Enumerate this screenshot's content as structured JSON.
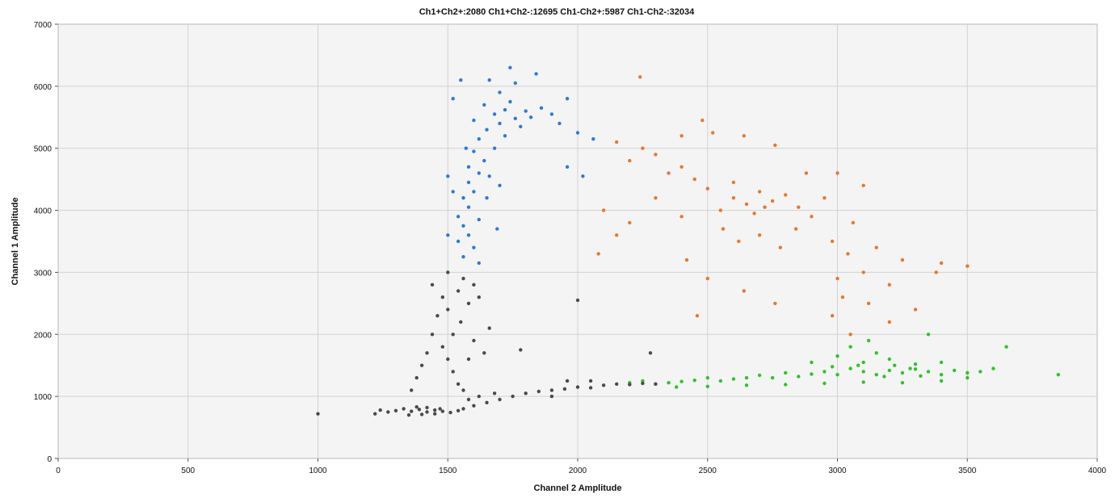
{
  "chart_data": {
    "type": "scatter",
    "title": "Ch1+Ch2+:2080  Ch1+Ch2-:12695  Ch1-Ch2+:5987  Ch1-Ch2-:32034",
    "xlabel": "Channel 2 Amplitude",
    "ylabel": "Channel 1 Amplitude",
    "xlim": [
      0,
      4000
    ],
    "ylim": [
      0,
      7000
    ],
    "x_ticks": [
      0,
      500,
      1000,
      1500,
      2000,
      2500,
      3000,
      3500,
      4000
    ],
    "y_ticks": [
      0,
      1000,
      2000,
      3000,
      4000,
      5000,
      6000,
      7000
    ],
    "x_tick_labels": [
      "0",
      "500",
      "1000",
      "1500",
      "2000",
      "2500",
      "3000",
      "3500",
      "4000"
    ],
    "y_tick_labels": [
      "0",
      "1000",
      "2000",
      "3000",
      "4000",
      "5000",
      "6000",
      "7000"
    ],
    "grid": true,
    "series": [
      {
        "color": "#2f79d6",
        "points": [
          [
            1640,
            5700
          ],
          [
            1680,
            5550
          ],
          [
            1720,
            5620
          ],
          [
            1760,
            5480
          ],
          [
            1800,
            5600
          ],
          [
            1700,
            5400
          ],
          [
            1650,
            5300
          ],
          [
            1740,
            5750
          ],
          [
            1780,
            5350
          ],
          [
            1820,
            5500
          ],
          [
            1860,
            5650
          ],
          [
            1600,
            5450
          ],
          [
            1700,
            5900
          ],
          [
            1760,
            6050
          ],
          [
            1660,
            6100
          ],
          [
            1900,
            5550
          ],
          [
            1930,
            5400
          ],
          [
            1620,
            5150
          ],
          [
            1680,
            5000
          ],
          [
            1720,
            5200
          ],
          [
            1600,
            4950
          ],
          [
            1640,
            4800
          ],
          [
            1580,
            4700
          ],
          [
            1620,
            4600
          ],
          [
            1580,
            4450
          ],
          [
            1600,
            4300
          ],
          [
            1560,
            4200
          ],
          [
            1580,
            4050
          ],
          [
            1540,
            3900
          ],
          [
            1560,
            3750
          ],
          [
            1580,
            3600
          ],
          [
            1540,
            3500
          ],
          [
            1600,
            3400
          ],
          [
            1560,
            3250
          ],
          [
            1620,
            3150
          ],
          [
            1550,
            6100
          ],
          [
            1960,
            5800
          ],
          [
            2000,
            5250
          ],
          [
            2060,
            5150
          ],
          [
            1840,
            6200
          ],
          [
            1740,
            6300
          ],
          [
            1520,
            5800
          ],
          [
            1570,
            5000
          ],
          [
            1660,
            4550
          ],
          [
            1700,
            4400
          ],
          [
            1650,
            4200
          ],
          [
            1520,
            4300
          ],
          [
            1500,
            4550
          ],
          [
            1620,
            3850
          ],
          [
            1690,
            3700
          ],
          [
            1500,
            3600
          ],
          [
            1960,
            4700
          ],
          [
            2020,
            4550
          ]
        ]
      },
      {
        "color": "#e8772e",
        "points": [
          [
            2600,
            4200
          ],
          [
            2650,
            4100
          ],
          [
            2700,
            4300
          ],
          [
            2750,
            4150
          ],
          [
            2800,
            4250
          ],
          [
            2550,
            4000
          ],
          [
            2500,
            4350
          ],
          [
            2450,
            4500
          ],
          [
            2600,
            4450
          ],
          [
            2680,
            3950
          ],
          [
            2720,
            4050
          ],
          [
            2850,
            4050
          ],
          [
            2900,
            3900
          ],
          [
            2950,
            4200
          ],
          [
            2400,
            4700
          ],
          [
            2350,
            4600
          ],
          [
            2300,
            4900
          ],
          [
            2250,
            5000
          ],
          [
            2200,
            4800
          ],
          [
            2150,
            5100
          ],
          [
            2480,
            5450
          ],
          [
            2520,
            5250
          ],
          [
            2560,
            3700
          ],
          [
            2620,
            3500
          ],
          [
            2700,
            3600
          ],
          [
            2780,
            3400
          ],
          [
            2400,
            3900
          ],
          [
            2300,
            4200
          ],
          [
            2200,
            3800
          ],
          [
            2150,
            3600
          ],
          [
            2100,
            4000
          ],
          [
            2080,
            3300
          ],
          [
            2980,
            3500
          ],
          [
            3040,
            3300
          ],
          [
            3100,
            3000
          ],
          [
            3150,
            3400
          ],
          [
            3200,
            2800
          ],
          [
            3250,
            3200
          ],
          [
            3000,
            2900
          ],
          [
            3020,
            2600
          ],
          [
            2980,
            2300
          ],
          [
            3050,
            2000
          ],
          [
            3120,
            2500
          ],
          [
            3200,
            2200
          ],
          [
            3300,
            2400
          ],
          [
            3380,
            3000
          ],
          [
            3400,
            3150
          ],
          [
            3500,
            3100
          ],
          [
            3060,
            3800
          ],
          [
            2840,
            3700
          ],
          [
            2880,
            4600
          ],
          [
            3000,
            4600
          ],
          [
            3100,
            4400
          ],
          [
            2420,
            3200
          ],
          [
            2500,
            2900
          ],
          [
            2640,
            2700
          ],
          [
            2460,
            2300
          ],
          [
            2760,
            2500
          ],
          [
            2240,
            6150
          ],
          [
            2760,
            5050
          ],
          [
            2640,
            5200
          ],
          [
            2400,
            5200
          ]
        ]
      },
      {
        "color": "#33c12a",
        "points": [
          [
            3050,
            1450
          ],
          [
            3100,
            1400
          ],
          [
            3150,
            1350
          ],
          [
            3200,
            1420
          ],
          [
            3250,
            1380
          ],
          [
            3300,
            1440
          ],
          [
            3350,
            1400
          ],
          [
            3400,
            1350
          ],
          [
            3450,
            1420
          ],
          [
            3500,
            1380
          ],
          [
            3550,
            1400
          ],
          [
            3000,
            1350
          ],
          [
            2950,
            1400
          ],
          [
            2900,
            1360
          ],
          [
            2850,
            1320
          ],
          [
            2800,
            1380
          ],
          [
            2750,
            1300
          ],
          [
            2700,
            1340
          ],
          [
            2650,
            1300
          ],
          [
            2600,
            1280
          ],
          [
            2550,
            1250
          ],
          [
            2500,
            1300
          ],
          [
            2450,
            1260
          ],
          [
            2400,
            1240
          ],
          [
            2350,
            1220
          ],
          [
            2300,
            1200
          ],
          [
            2250,
            1250
          ],
          [
            2200,
            1220
          ],
          [
            3100,
            1550
          ],
          [
            3200,
            1600
          ],
          [
            3300,
            1520
          ],
          [
            3150,
            1700
          ],
          [
            3050,
            1800
          ],
          [
            3120,
            1900
          ],
          [
            3000,
            1650
          ],
          [
            2900,
            1550
          ],
          [
            3400,
            1550
          ],
          [
            3600,
            1450
          ],
          [
            3650,
            1800
          ],
          [
            3850,
            1350
          ],
          [
            3350,
            2000
          ],
          [
            3400,
            1250
          ],
          [
            3250,
            1220
          ],
          [
            3100,
            1230
          ],
          [
            2950,
            1210
          ],
          [
            2800,
            1190
          ],
          [
            2650,
            1180
          ],
          [
            2500,
            1160
          ],
          [
            2380,
            1150
          ],
          [
            3500,
            1300
          ],
          [
            3220,
            1500
          ],
          [
            3280,
            1450
          ],
          [
            3080,
            1500
          ],
          [
            2980,
            1480
          ],
          [
            3180,
            1320
          ],
          [
            3320,
            1330
          ]
        ]
      },
      {
        "color": "#4a4a4a",
        "points": [
          [
            1300,
            770
          ],
          [
            1330,
            800
          ],
          [
            1360,
            760
          ],
          [
            1390,
            790
          ],
          [
            1420,
            750
          ],
          [
            1450,
            780
          ],
          [
            1480,
            760
          ],
          [
            1510,
            740
          ],
          [
            1540,
            770
          ],
          [
            1270,
            750
          ],
          [
            1240,
            780
          ],
          [
            1220,
            720
          ],
          [
            1350,
            700
          ],
          [
            1400,
            710
          ],
          [
            1450,
            720
          ],
          [
            1380,
            830
          ],
          [
            1420,
            820
          ],
          [
            1470,
            800
          ],
          [
            1560,
            800
          ],
          [
            1600,
            850
          ],
          [
            1650,
            900
          ],
          [
            1700,
            950
          ],
          [
            1750,
            1000
          ],
          [
            1800,
            1050
          ],
          [
            1850,
            1080
          ],
          [
            1900,
            1100
          ],
          [
            1950,
            1120
          ],
          [
            2000,
            1150
          ],
          [
            2050,
            1140
          ],
          [
            2100,
            1180
          ],
          [
            2150,
            1200
          ],
          [
            2200,
            1190
          ],
          [
            2250,
            1210
          ],
          [
            2300,
            1200
          ],
          [
            1620,
            1000
          ],
          [
            1680,
            1050
          ],
          [
            1580,
            950
          ],
          [
            1560,
            1100
          ],
          [
            1540,
            1200
          ],
          [
            1520,
            1400
          ],
          [
            1500,
            1600
          ],
          [
            1480,
            1800
          ],
          [
            1520,
            2000
          ],
          [
            1550,
            2200
          ],
          [
            1500,
            2400
          ],
          [
            1580,
            2500
          ],
          [
            1540,
            2700
          ],
          [
            1560,
            2900
          ],
          [
            1500,
            3000
          ],
          [
            1600,
            2800
          ],
          [
            1620,
            2600
          ],
          [
            1460,
            2300
          ],
          [
            1440,
            2000
          ],
          [
            1420,
            1700
          ],
          [
            1400,
            1500
          ],
          [
            1380,
            1300
          ],
          [
            1360,
            1100
          ],
          [
            1580,
            1600
          ],
          [
            1600,
            1900
          ],
          [
            1640,
            1700
          ],
          [
            1660,
            2100
          ],
          [
            1480,
            2600
          ],
          [
            1440,
            2800
          ],
          [
            1000,
            720
          ],
          [
            2000,
            2550
          ],
          [
            1780,
            1750
          ],
          [
            2280,
            1700
          ],
          [
            1900,
            1000
          ],
          [
            2050,
            1250
          ],
          [
            1960,
            1250
          ]
        ]
      }
    ]
  }
}
